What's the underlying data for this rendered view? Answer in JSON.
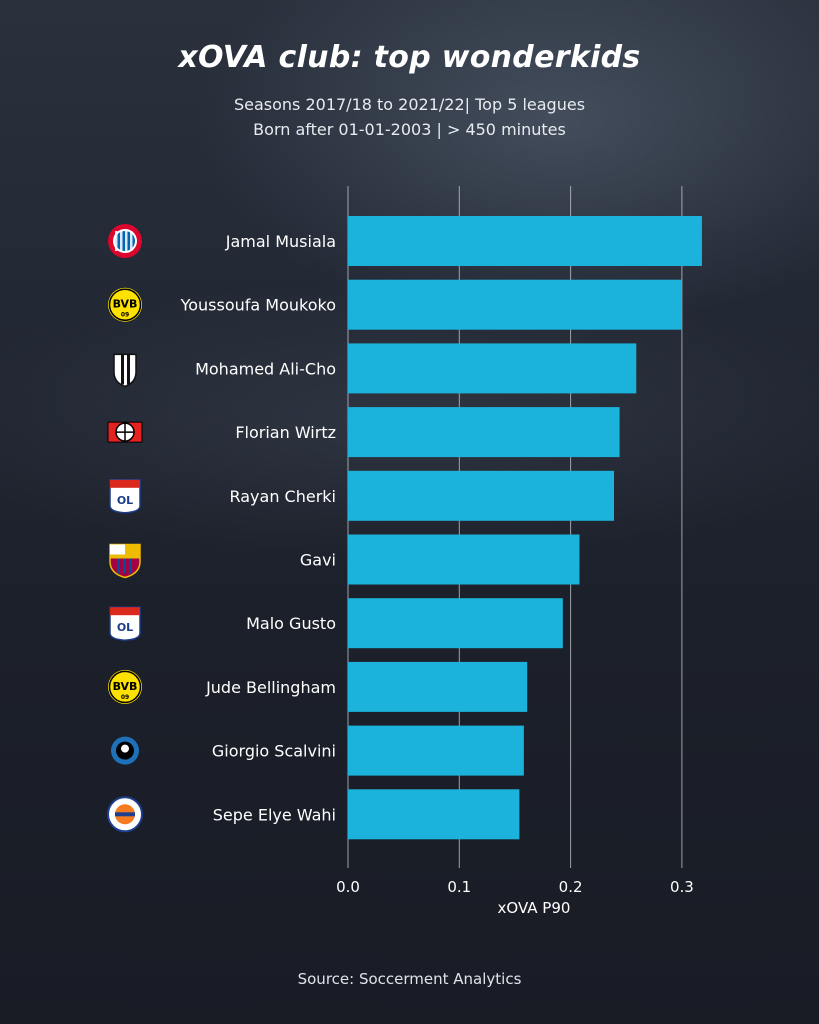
{
  "header": {
    "title": "xOVA club: top wonderkids",
    "subtitle_line1": "Seasons 2017/18 to 2021/22| Top 5 leagues",
    "subtitle_line2": "Born after 01-01-2003 | > 450 minutes"
  },
  "footer": {
    "source": "Source: Soccerment Analytics"
  },
  "colors": {
    "bar": "#1bb3db",
    "grid": "#c8ccd2",
    "background": "#1b1f2a"
  },
  "chart_data": {
    "type": "bar",
    "orientation": "horizontal",
    "categories": [
      "Jamal Musiala",
      "Youssoufa Moukoko",
      "Mohamed Ali-Cho",
      "Florian Wirtz",
      "Rayan Cherki",
      "Gavi",
      "Malo Gusto",
      "Jude Bellingham",
      "Giorgio Scalvini",
      "Sepe Elye Wahi"
    ],
    "values": [
      0.318,
      0.3,
      0.259,
      0.244,
      0.239,
      0.208,
      0.193,
      0.161,
      0.158,
      0.154
    ],
    "clubs": [
      "bayern-munich-icon",
      "borussia-dortmund-icon",
      "angers-icon",
      "bayer-leverkusen-icon",
      "olympique-lyonnais-icon",
      "fc-barcelona-icon",
      "olympique-lyonnais-icon",
      "borussia-dortmund-icon",
      "atalanta-icon",
      "montpellier-icon"
    ],
    "xlabel": "xOVA P90",
    "xlim": [
      0,
      0.33
    ],
    "xticks": [
      0.0,
      0.1,
      0.2,
      0.3
    ],
    "xtick_labels": [
      "0.0",
      "0.1",
      "0.2",
      "0.3"
    ],
    "grid": "vertical"
  }
}
